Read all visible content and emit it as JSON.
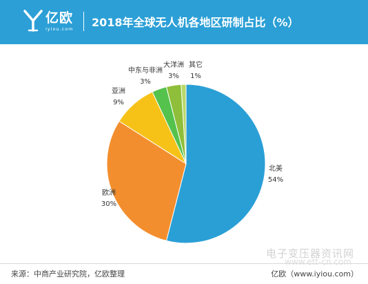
{
  "header": {
    "brand_name": "亿欧",
    "brand_sub": "iyiou.com",
    "title": "2018年全球无人机各地区研制占比（%）"
  },
  "colors": {
    "header_bg": "#2b9fd6",
    "北美": "#2a9fd6",
    "欧洲": "#f38e2e",
    "亚洲": "#f7c218",
    "中东与非洲": "#55c24d",
    "大洋洲": "#8fbf3a",
    "其它": "#b9d96a"
  },
  "chart_data": {
    "type": "pie",
    "title": "2018年全球无人机各地区研制占比（%）",
    "slices": [
      {
        "label": "北美",
        "value": 54,
        "text": "54%"
      },
      {
        "label": "欧洲",
        "value": 30,
        "text": "30%"
      },
      {
        "label": "亚洲",
        "value": 9,
        "text": "9%"
      },
      {
        "label": "中东与非洲",
        "value": 3,
        "text": "3%"
      },
      {
        "label": "大洋洲",
        "value": 3,
        "text": "3%"
      },
      {
        "label": "其它",
        "value": 1,
        "text": "1%"
      }
    ],
    "start": "12 o'clock",
    "direction": "clockwise"
  },
  "watermark": {
    "text": "电子变压器资讯网",
    "url": "www.ett-cn.com"
  },
  "footer": {
    "source": "来源：中商产业研究院，亿欧整理",
    "brand": "亿欧（www.iyiou.com）"
  }
}
